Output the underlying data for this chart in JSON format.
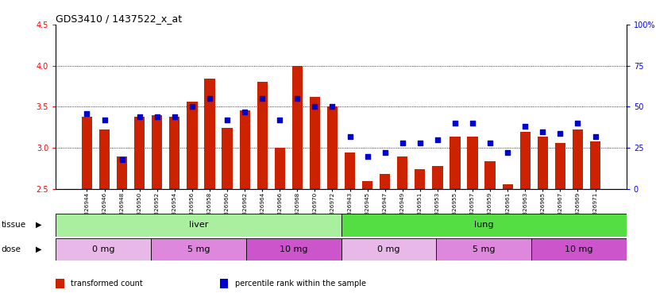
{
  "title": "GDS3410 / 1437522_x_at",
  "samples": [
    "GSM326944",
    "GSM326946",
    "GSM326948",
    "GSM326950",
    "GSM326952",
    "GSM326954",
    "GSM326956",
    "GSM326958",
    "GSM326960",
    "GSM326962",
    "GSM326964",
    "GSM326966",
    "GSM326968",
    "GSM326970",
    "GSM326972",
    "GSM326943",
    "GSM326945",
    "GSM326947",
    "GSM326949",
    "GSM326951",
    "GSM326953",
    "GSM326955",
    "GSM326957",
    "GSM326959",
    "GSM326961",
    "GSM326963",
    "GSM326965",
    "GSM326967",
    "GSM326969",
    "GSM326971"
  ],
  "bar_values": [
    3.38,
    3.22,
    2.9,
    3.38,
    3.4,
    3.38,
    3.56,
    3.84,
    3.24,
    3.46,
    3.8,
    3.0,
    4.0,
    3.62,
    3.5,
    2.94,
    2.6,
    2.68,
    2.9,
    2.74,
    2.78,
    3.14,
    3.14,
    2.84,
    2.56,
    3.2,
    3.14,
    3.06,
    3.22,
    3.08
  ],
  "dot_values": [
    46,
    42,
    18,
    44,
    44,
    44,
    50,
    55,
    42,
    47,
    55,
    42,
    55,
    50,
    50,
    32,
    20,
    22,
    28,
    28,
    30,
    40,
    40,
    28,
    22,
    38,
    35,
    34,
    40,
    32
  ],
  "ylim_left": [
    2.5,
    4.5
  ],
  "ylim_right": [
    0,
    100
  ],
  "yticks_left": [
    2.5,
    3.0,
    3.5,
    4.0,
    4.5
  ],
  "yticks_right": [
    0,
    25,
    50,
    75,
    100
  ],
  "bar_color": "#cc2200",
  "dot_color": "#0000cc",
  "tissue_groups": [
    {
      "label": "liver",
      "start": 0,
      "end": 14,
      "color": "#aaeea0"
    },
    {
      "label": "lung",
      "start": 15,
      "end": 29,
      "color": "#55dd44"
    }
  ],
  "dose_groups": [
    {
      "label": "0 mg",
      "start": 0,
      "end": 4,
      "color": "#e8b8e8"
    },
    {
      "label": "5 mg",
      "start": 5,
      "end": 9,
      "color": "#dd88dd"
    },
    {
      "label": "10 mg",
      "start": 10,
      "end": 14,
      "color": "#cc55cc"
    },
    {
      "label": "0 mg",
      "start": 15,
      "end": 19,
      "color": "#e8b8e8"
    },
    {
      "label": "5 mg",
      "start": 20,
      "end": 24,
      "color": "#dd88dd"
    },
    {
      "label": "10 mg",
      "start": 25,
      "end": 29,
      "color": "#cc55cc"
    }
  ],
  "legend_items": [
    {
      "label": "transformed count",
      "color": "#cc2200"
    },
    {
      "label": "percentile rank within the sample",
      "color": "#0000cc"
    }
  ],
  "grid_lines": [
    3.0,
    3.5,
    4.0
  ],
  "bg_color": "#ffffff",
  "plot_bg_color": "#ffffff"
}
